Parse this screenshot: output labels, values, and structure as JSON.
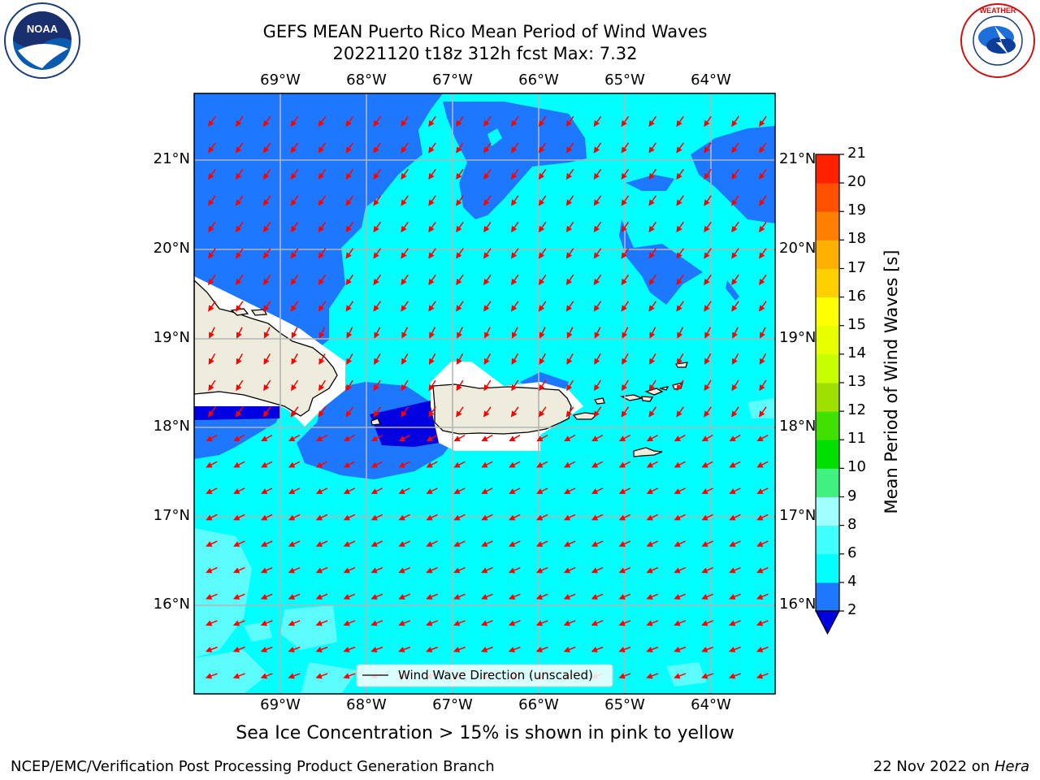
{
  "title": {
    "line1": "GEFS MEAN Puerto Rico Mean Period of Wind Waves",
    "line2": "20221120 t18z 312h fcst   Max: 7.32"
  },
  "logos": {
    "left": "NOAA",
    "right": "NATIONAL WEATHER SERVICE"
  },
  "map": {
    "lon_labels": [
      "69°W",
      "68°W",
      "67°W",
      "66°W",
      "65°W",
      "64°W"
    ],
    "lat_labels": [
      "21°N",
      "20°N",
      "19°N",
      "18°N",
      "17°N",
      "16°N"
    ],
    "legend": "Wind Wave Direction (unscaled)",
    "colors": {
      "dark_blue": "#0000e0",
      "mid_blue": "#1e78ff",
      "cyan": "#00ffff",
      "light_cyan": "#5dfcfc",
      "land": "#eeecdc",
      "arrow": "#ff0000"
    }
  },
  "colorbar": {
    "label": "Mean Period of Wind Waves [s]",
    "ticks": [
      "2",
      "4",
      "6",
      "8",
      "9",
      "10",
      "11",
      "12",
      "13",
      "14",
      "15",
      "16",
      "17",
      "18",
      "19",
      "20",
      "21"
    ],
    "colors": [
      "#1e78ff",
      "#00ffff",
      "#40ffff",
      "#a0ffff",
      "#40f080",
      "#00e000",
      "#40e000",
      "#a0e000",
      "#c8ff00",
      "#e8ff00",
      "#ffff00",
      "#ffd000",
      "#ffb000",
      "#ff8000",
      "#ff5000",
      "#ff2000",
      "#ff0000"
    ],
    "extend_color": "#0000e0"
  },
  "subtitle": "Sea Ice Concentration > 15% is shown in pink to yellow",
  "footer": {
    "left": "NCEP/EMC/Verification Post Processing Product Generation Branch",
    "right_prefix": "22 Nov 2022 on ",
    "right_italic": "Hera"
  }
}
